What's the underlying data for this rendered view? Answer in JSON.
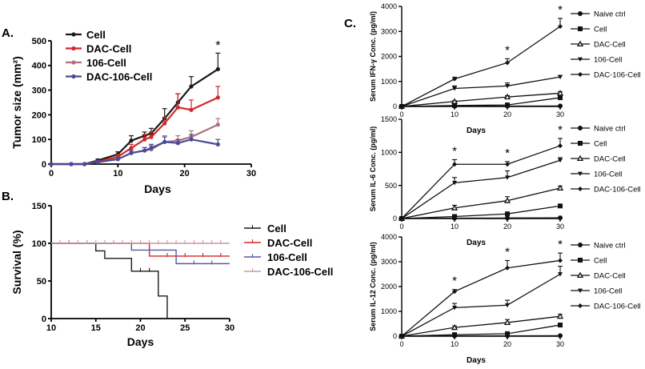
{
  "figure": {
    "panels": [
      {
        "id": "A",
        "label": "A."
      },
      {
        "id": "B",
        "label": "B."
      },
      {
        "id": "C",
        "label": "C."
      }
    ]
  },
  "chart_data": [
    {
      "id": "A",
      "type": "line",
      "title": "",
      "xlabel": "Days",
      "ylabel": "Tumor size (mm²)",
      "xlim": [
        0,
        30
      ],
      "ylim": [
        0,
        500
      ],
      "xticks": [
        0,
        10,
        20,
        30
      ],
      "yticks": [
        0,
        100,
        200,
        300,
        400,
        500
      ],
      "x": [
        0,
        3,
        5,
        7,
        10,
        12,
        14,
        15,
        17,
        19,
        21,
        25
      ],
      "legend_position": "top-center",
      "series": [
        {
          "name": "Cell",
          "color": "#1a1a1a",
          "values": [
            0,
            0,
            0,
            15,
            40,
            95,
            115,
            125,
            185,
            250,
            315,
            385
          ],
          "errors": [
            0,
            0,
            0,
            5,
            10,
            20,
            15,
            20,
            40,
            35,
            40,
            65
          ]
        },
        {
          "name": "DAC-Cell",
          "color": "#d22828",
          "values": [
            0,
            0,
            0,
            10,
            30,
            65,
            100,
            110,
            165,
            230,
            220,
            270
          ],
          "errors": [
            0,
            0,
            0,
            5,
            10,
            15,
            20,
            20,
            25,
            55,
            40,
            45
          ]
        },
        {
          "name": "106-Cell",
          "color": "#b07080",
          "values": [
            0,
            0,
            0,
            8,
            20,
            45,
            55,
            60,
            90,
            95,
            110,
            160
          ],
          "errors": [
            0,
            0,
            0,
            5,
            8,
            10,
            12,
            15,
            25,
            20,
            25,
            25
          ]
        },
        {
          "name": "DAC-106-Cell",
          "color": "#4a4a9a",
          "values": [
            0,
            0,
            0,
            8,
            20,
            45,
            55,
            65,
            90,
            85,
            100,
            80
          ],
          "errors": [
            0,
            0,
            0,
            5,
            8,
            10,
            12,
            15,
            20,
            15,
            20,
            20
          ]
        }
      ],
      "annotations": [
        {
          "text": "*",
          "x": 25
        }
      ]
    },
    {
      "id": "B",
      "type": "line",
      "title": "",
      "xlabel": "Days",
      "ylabel": "Survival (%)",
      "xlim": [
        10,
        30
      ],
      "ylim": [
        0,
        150
      ],
      "xticks": [
        10,
        15,
        20,
        25,
        30
      ],
      "yticks": [
        0,
        50,
        100,
        150
      ],
      "legend_position": "right",
      "series": [
        {
          "name": "Cell",
          "color": "#1a1a1a",
          "steps": [
            [
              10,
              100
            ],
            [
              15,
              100
            ],
            [
              15,
              90
            ],
            [
              16,
              90
            ],
            [
              16,
              80
            ],
            [
              19,
              80
            ],
            [
              19,
              63
            ],
            [
              22,
              63
            ],
            [
              22,
              30
            ],
            [
              23,
              30
            ],
            [
              23,
              0
            ]
          ],
          "censor_x": [
            20,
            21
          ]
        },
        {
          "name": "DAC-Cell",
          "color": "#d22828",
          "steps": [
            [
              10,
              100
            ],
            [
              21,
              100
            ],
            [
              21,
              83
            ],
            [
              30,
              83
            ]
          ],
          "censor_x": [
            12,
            14,
            17,
            23,
            25,
            27,
            29
          ]
        },
        {
          "name": "106-Cell",
          "color": "#5a5a9a",
          "steps": [
            [
              10,
              100
            ],
            [
              19,
              100
            ],
            [
              19,
              91
            ],
            [
              24,
              91
            ],
            [
              24,
              73
            ],
            [
              30,
              73
            ]
          ],
          "censor_x": [
            21,
            26,
            28
          ]
        },
        {
          "name": "DAC-106-Cell",
          "color": "#c898a8",
          "steps": [
            [
              10,
              100
            ],
            [
              30,
              100
            ]
          ],
          "censor_x": [
            11,
            12,
            13,
            14,
            15,
            16,
            17,
            18,
            19,
            20,
            21,
            22,
            23,
            24,
            25,
            26,
            27,
            28,
            29
          ]
        }
      ]
    },
    {
      "id": "C1",
      "type": "line",
      "title": "",
      "xlabel": "Days",
      "ylabel": "Serum IFN-γ Conc. (pg/ml)",
      "xlim": [
        0,
        30
      ],
      "ylim": [
        0,
        4000
      ],
      "xticks": [
        0,
        10,
        20,
        30
      ],
      "yticks": [
        0,
        1000,
        2000,
        3000,
        4000
      ],
      "x": [
        0,
        10,
        20,
        30
      ],
      "legend_position": "right",
      "series": [
        {
          "name": "Naive ctrl",
          "marker": "circle",
          "values": [
            0,
            10,
            15,
            20
          ],
          "errors": [
            0,
            5,
            5,
            5
          ]
        },
        {
          "name": "Cell",
          "marker": "square",
          "values": [
            0,
            40,
            60,
            350
          ],
          "errors": [
            0,
            10,
            15,
            40
          ]
        },
        {
          "name": "DAC-Cell",
          "marker": "triangle-up",
          "values": [
            0,
            200,
            380,
            530
          ],
          "errors": [
            0,
            30,
            50,
            60
          ]
        },
        {
          "name": "106-Cell",
          "marker": "triangle-down",
          "values": [
            0,
            720,
            820,
            1180
          ],
          "errors": [
            0,
            100,
            120,
            60
          ]
        },
        {
          "name": "DAC-106-Cell",
          "marker": "diamond",
          "values": [
            0,
            1100,
            1750,
            3200
          ],
          "errors": [
            0,
            70,
            160,
            320
          ]
        }
      ],
      "annotations": [
        {
          "text": "*",
          "x": 20
        },
        {
          "text": "*",
          "x": 30
        }
      ]
    },
    {
      "id": "C2",
      "type": "line",
      "title": "",
      "xlabel": "Days",
      "ylabel": "Serum IL-6 Conc. (pg/ml)",
      "xlim": [
        0,
        30
      ],
      "ylim": [
        0,
        1500
      ],
      "xticks": [
        0,
        10,
        20,
        30
      ],
      "yticks": [
        0,
        500,
        1000,
        1500
      ],
      "x": [
        0,
        10,
        20,
        30
      ],
      "legend_position": "right",
      "series": [
        {
          "name": "Naive ctrl",
          "marker": "circle",
          "values": [
            0,
            5,
            8,
            10
          ],
          "errors": [
            0,
            3,
            3,
            3
          ]
        },
        {
          "name": "Cell",
          "marker": "square",
          "values": [
            0,
            30,
            70,
            190
          ],
          "errors": [
            0,
            10,
            15,
            20
          ]
        },
        {
          "name": "DAC-Cell",
          "marker": "triangle-up",
          "values": [
            0,
            160,
            270,
            460
          ],
          "errors": [
            0,
            40,
            60,
            30
          ]
        },
        {
          "name": "106-Cell",
          "marker": "triangle-down",
          "values": [
            0,
            540,
            620,
            880
          ],
          "errors": [
            0,
            80,
            100,
            40
          ]
        },
        {
          "name": "DAC-106-Cell",
          "marker": "diamond",
          "values": [
            0,
            820,
            820,
            1100
          ],
          "errors": [
            0,
            70,
            40,
            110
          ]
        }
      ],
      "annotations": [
        {
          "text": "*",
          "x": 10
        },
        {
          "text": "*",
          "x": 20
        },
        {
          "text": "*",
          "x": 30
        }
      ]
    },
    {
      "id": "C3",
      "type": "line",
      "title": "",
      "xlabel": "Days",
      "ylabel": "Serum IL-12 Conc. (pg/ml)",
      "xlim": [
        0,
        30
      ],
      "ylim": [
        0,
        4000
      ],
      "xticks": [
        0,
        10,
        20,
        30
      ],
      "yticks": [
        0,
        1000,
        2000,
        3000,
        4000
      ],
      "x": [
        0,
        10,
        20,
        30
      ],
      "legend_position": "right",
      "series": [
        {
          "name": "Naive ctrl",
          "marker": "circle",
          "values": [
            0,
            10,
            15,
            20
          ],
          "errors": [
            0,
            5,
            5,
            5
          ]
        },
        {
          "name": "Cell",
          "marker": "square",
          "values": [
            0,
            60,
            100,
            450
          ],
          "errors": [
            0,
            15,
            20,
            40
          ]
        },
        {
          "name": "DAC-Cell",
          "marker": "triangle-up",
          "values": [
            0,
            350,
            550,
            800
          ],
          "errors": [
            0,
            60,
            120,
            80
          ]
        },
        {
          "name": "106-Cell",
          "marker": "triangle-down",
          "values": [
            0,
            1150,
            1250,
            2500
          ],
          "errors": [
            0,
            170,
            200,
            320
          ]
        },
        {
          "name": "DAC-106-Cell",
          "marker": "diamond",
          "values": [
            0,
            1800,
            2750,
            3050
          ],
          "errors": [
            0,
            80,
            300,
            300
          ]
        }
      ],
      "annotations": [
        {
          "text": "*",
          "x": 10
        },
        {
          "text": "*",
          "x": 20
        },
        {
          "text": "*",
          "x": 30
        }
      ]
    }
  ]
}
